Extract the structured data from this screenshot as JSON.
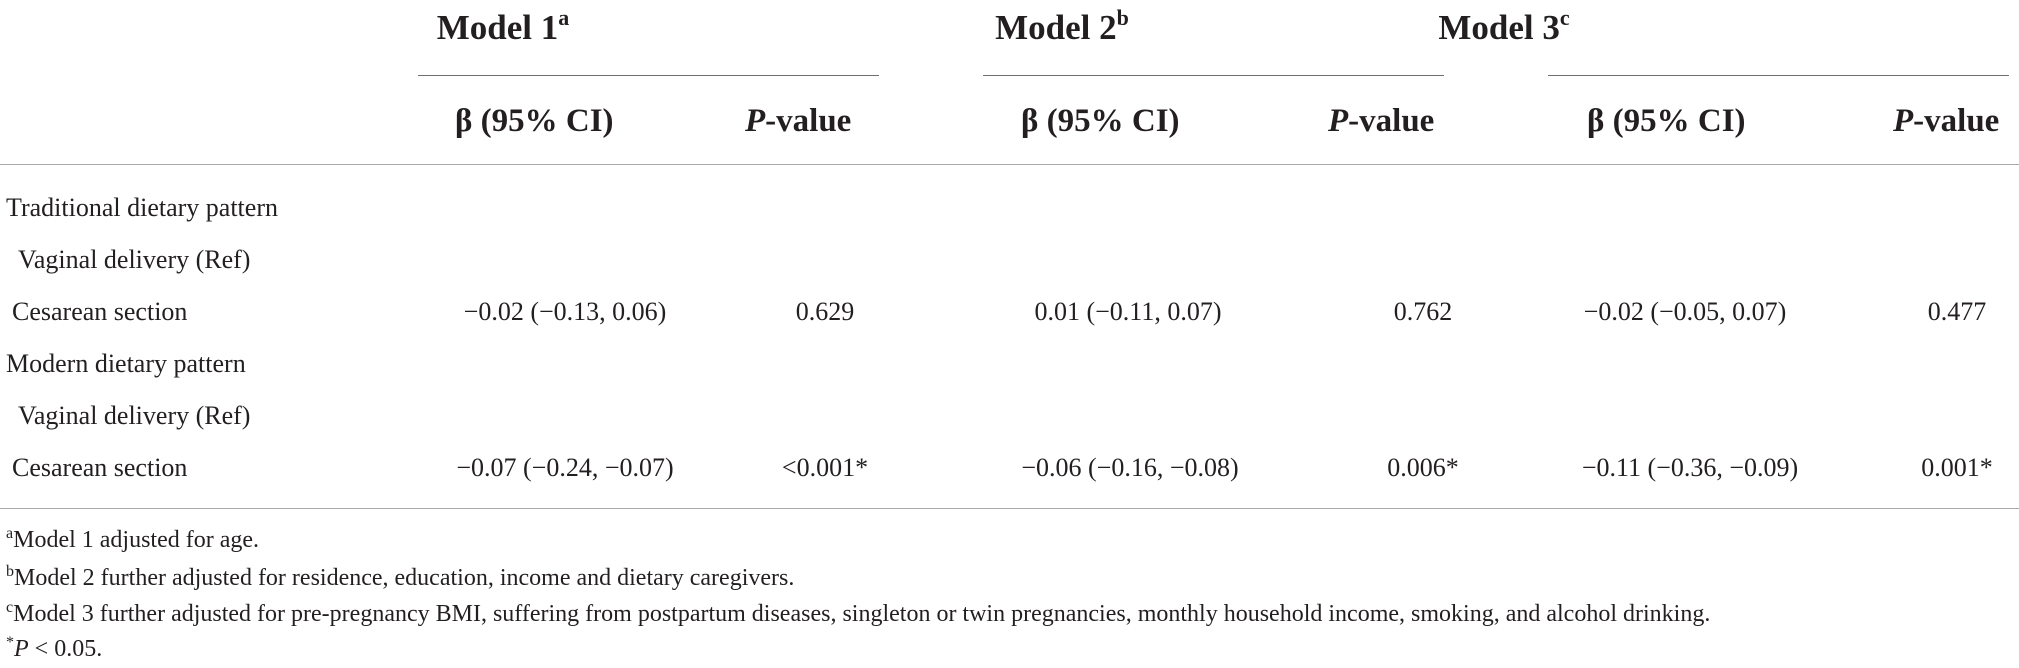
{
  "header": {
    "models": [
      {
        "name": "Model 1",
        "sup": "a"
      },
      {
        "name": "Model 2",
        "sup": "b"
      },
      {
        "name": "Model 3",
        "sup": "c"
      }
    ],
    "beta_label": "β (95% CI)",
    "p_italic": "P",
    "p_rest": "-value"
  },
  "rows": [
    {
      "label": "Traditional dietary pattern"
    },
    {
      "label": "Vaginal delivery (Ref)"
    },
    {
      "label": "Cesarean section",
      "values": [
        "−0.02 (−0.13, 0.06)",
        "0.629",
        "0.01 (−0.11, 0.07)",
        "0.762",
        "−0.02 (−0.05, 0.07)",
        "0.477"
      ]
    },
    {
      "label": "Modern dietary pattern"
    },
    {
      "label": "Vaginal delivery (Ref)"
    },
    {
      "label": "Cesarean section",
      "values": [
        "−0.07 (−0.24, −0.07)",
        "<0.001*",
        "−0.06 (−0.16, −0.08)",
        "0.006*",
        "−0.11 (−0.36, −0.09)",
        "0.001*"
      ]
    }
  ],
  "footnotes": [
    {
      "mark": "a",
      "text": "Model 1 adjusted for age."
    },
    {
      "mark": "b",
      "text": "Model 2 further adjusted for residence, education, income and dietary caregivers."
    },
    {
      "mark": "c",
      "text": "Model 3 further adjusted for pre-pregnancy BMI, suffering from postpartum diseases, singleton or twin pregnancies, monthly household income, smoking, and alcohol drinking."
    },
    {
      "mark": "*",
      "italic": "P",
      "text": " < 0.05."
    }
  ]
}
